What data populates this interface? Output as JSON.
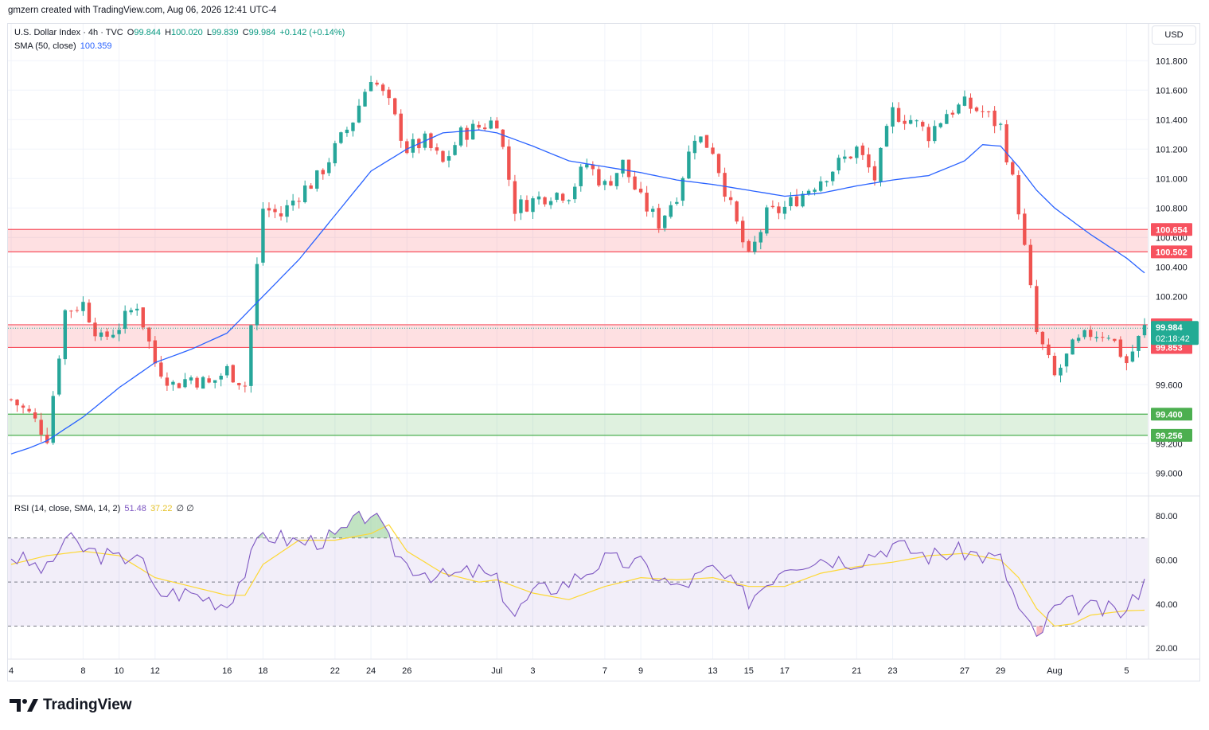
{
  "header": {
    "caption": "gmzern created with TradingView.com, Aug 06, 2026 12:41 UTC-4"
  },
  "legend": {
    "symbol": "U.S. Dollar Index · 4h · TVC",
    "o_label": "O",
    "o_value": "99.844",
    "h_label": "H",
    "h_value": "100.020",
    "l_label": "L",
    "l_value": "99.839",
    "c_label": "C",
    "c_value": "99.984",
    "change": "+0.142 (+0.14%)",
    "sma_label": "SMA (50, close)",
    "sma_value": "100.359",
    "rsi_label": "RSI (14, close, SMA, 14, 2)",
    "rsi_value": "51.48",
    "rsi_ma_value": "37.22",
    "rsi_extra": "∅ ∅"
  },
  "currency_button": "USD",
  "footer": {
    "brand": "TradingView"
  },
  "colors": {
    "up": "#26a69a",
    "down": "#ef5350",
    "sma": "#2962ff",
    "rsi": "#7e57c2",
    "rsi_ma": "#fdd835",
    "resistance_zone": "#f7525f",
    "support_zone": "#4caf50",
    "price_tag": "#22ab94"
  },
  "chart_data": {
    "type": "candlestick",
    "timeframe": "4h",
    "x_tick_labels": [
      "4",
      "8",
      "10",
      "12",
      "16",
      "18",
      "22",
      "24",
      "26",
      "Jul",
      "3",
      "7",
      "9",
      "13",
      "15",
      "17",
      "21",
      "23",
      "27",
      "29",
      "Aug",
      "5"
    ],
    "y_tick_labels": [
      "101.800",
      "101.600",
      "101.400",
      "101.200",
      "101.000",
      "100.800",
      "100.600",
      "100.400",
      "100.200",
      "99.600",
      "99.200",
      "99.000"
    ],
    "ylim": [
      98.85,
      102.05
    ],
    "path_anchors": [
      [
        "4",
        99.5
      ],
      [
        "5",
        99.4
      ],
      [
        "6",
        99.25
      ],
      [
        "7",
        100.1
      ],
      [
        "8",
        100.15
      ],
      [
        "9",
        99.9
      ],
      [
        "10",
        100.0
      ],
      [
        "11",
        100.15
      ],
      [
        "12",
        99.75
      ],
      [
        "13",
        99.6
      ],
      [
        "14",
        99.65
      ],
      [
        "15",
        99.6
      ],
      [
        "16",
        99.7
      ],
      [
        "17",
        99.6
      ],
      [
        "18",
        100.8
      ],
      [
        "19",
        100.75
      ],
      [
        "20",
        100.9
      ],
      [
        "21",
        101.0
      ],
      [
        "22",
        101.2
      ],
      [
        "23",
        101.4
      ],
      [
        "24",
        101.7
      ],
      [
        "25",
        101.5
      ],
      [
        "26",
        101.2
      ],
      [
        "27",
        101.25
      ],
      [
        "28",
        101.1
      ],
      [
        "29",
        101.3
      ],
      [
        "30",
        101.35
      ],
      [
        "Jul",
        101.4
      ],
      [
        "2",
        100.8
      ],
      [
        "3",
        100.85
      ],
      [
        "4",
        100.9
      ],
      [
        "5",
        100.9
      ],
      [
        "6",
        101.1
      ],
      [
        "7",
        100.95
      ],
      [
        "8",
        101.1
      ],
      [
        "9",
        100.85
      ],
      [
        "10",
        100.7
      ],
      [
        "11",
        100.9
      ],
      [
        "12",
        101.3
      ],
      [
        "13",
        101.2
      ],
      [
        "14",
        100.8
      ],
      [
        "15",
        100.45
      ],
      [
        "16",
        100.75
      ],
      [
        "17",
        100.8
      ],
      [
        "18",
        100.9
      ],
      [
        "19",
        101.0
      ],
      [
        "20",
        101.1
      ],
      [
        "21",
        101.2
      ],
      [
        "22",
        101.0
      ],
      [
        "23",
        101.45
      ],
      [
        "24",
        101.4
      ],
      [
        "25",
        101.3
      ],
      [
        "26",
        101.45
      ],
      [
        "27",
        101.5
      ],
      [
        "28",
        101.45
      ],
      [
        "29",
        101.35
      ],
      [
        "30",
        100.8
      ],
      [
        "31",
        99.95
      ],
      [
        "Aug",
        99.65
      ],
      [
        "2",
        99.85
      ],
      [
        "3",
        99.95
      ],
      [
        "4",
        99.95
      ],
      [
        "5",
        99.75
      ],
      [
        "6",
        99.984
      ]
    ],
    "sma50_anchors": [
      [
        "4",
        99.13
      ],
      [
        "5",
        99.17
      ],
      [
        "6",
        99.22
      ],
      [
        "8",
        99.38
      ],
      [
        "10",
        99.58
      ],
      [
        "12",
        99.75
      ],
      [
        "14",
        99.84
      ],
      [
        "16",
        99.95
      ],
      [
        "18",
        100.2
      ],
      [
        "20",
        100.45
      ],
      [
        "22",
        100.75
      ],
      [
        "24",
        101.05
      ],
      [
        "26",
        101.2
      ],
      [
        "28",
        101.31
      ],
      [
        "30",
        101.33
      ],
      [
        "Jul",
        101.31
      ],
      [
        "3",
        101.22
      ],
      [
        "5",
        101.12
      ],
      [
        "7",
        101.08
      ],
      [
        "9",
        101.04
      ],
      [
        "11",
        100.99
      ],
      [
        "13",
        100.96
      ],
      [
        "15",
        100.92
      ],
      [
        "17",
        100.88
      ],
      [
        "19",
        100.9
      ],
      [
        "21",
        100.95
      ],
      [
        "23",
        100.99
      ],
      [
        "25",
        101.02
      ],
      [
        "27",
        101.12
      ],
      [
        "28",
        101.23
      ],
      [
        "29",
        101.22
      ],
      [
        "30",
        101.08
      ],
      [
        "31",
        100.92
      ],
      [
        "Aug",
        100.8
      ],
      [
        "3",
        100.62
      ],
      [
        "5",
        100.46
      ],
      [
        "6",
        100.359
      ]
    ],
    "zones": [
      {
        "label_top": "100.654",
        "label_bottom": "100.502",
        "kind": "resistance"
      },
      {
        "label_top": "100.007",
        "label_bottom": "99.853",
        "kind": "resistance"
      },
      {
        "label_top": "99.400",
        "label_bottom": "99.256",
        "kind": "support"
      }
    ],
    "last_price": {
      "price": "99.984",
      "countdown": "02:18:42"
    },
    "rsi": {
      "y_tick_labels": [
        "80.00",
        "60.00",
        "40.00",
        "20.00"
      ],
      "ylim": [
        15,
        88
      ],
      "bands": [
        30,
        50,
        70
      ],
      "anchors": [
        [
          "4",
          62
        ],
        [
          "6",
          55
        ],
        [
          "7",
          70
        ],
        [
          "8",
          65
        ],
        [
          "10",
          60
        ],
        [
          "11",
          64
        ],
        [
          "12",
          45
        ],
        [
          "14",
          45
        ],
        [
          "16",
          40
        ],
        [
          "17",
          55
        ],
        [
          "18",
          72
        ],
        [
          "20",
          68
        ],
        [
          "22",
          70
        ],
        [
          "24",
          82
        ],
        [
          "25",
          68
        ],
        [
          "26",
          58
        ],
        [
          "28",
          52
        ],
        [
          "30",
          55
        ],
        [
          "Jul",
          50
        ],
        [
          "2",
          35
        ],
        [
          "3",
          45
        ],
        [
          "5",
          50
        ],
        [
          "7",
          60
        ],
        [
          "9",
          58
        ],
        [
          "11",
          47
        ],
        [
          "13",
          56
        ],
        [
          "15",
          42
        ],
        [
          "17",
          58
        ],
        [
          "19",
          61
        ],
        [
          "21",
          60
        ],
        [
          "23",
          67
        ],
        [
          "25",
          62
        ],
        [
          "27",
          64
        ],
        [
          "29",
          60
        ],
        [
          "30",
          38
        ],
        [
          "31",
          24
        ],
        [
          "Aug",
          38
        ],
        [
          "2",
          40
        ],
        [
          "3",
          38
        ],
        [
          "5",
          36
        ],
        [
          "6",
          51.48
        ]
      ],
      "ma_anchors": [
        [
          "4",
          58
        ],
        [
          "6",
          62
        ],
        [
          "8",
          64
        ],
        [
          "10",
          62
        ],
        [
          "12",
          52
        ],
        [
          "14",
          48
        ],
        [
          "16",
          44
        ],
        [
          "17",
          44
        ],
        [
          "18",
          58
        ],
        [
          "20",
          69
        ],
        [
          "22",
          69
        ],
        [
          "24",
          72
        ],
        [
          "25",
          76
        ],
        [
          "26",
          64
        ],
        [
          "28",
          54
        ],
        [
          "30",
          50
        ],
        [
          "Jul",
          51
        ],
        [
          "3",
          45
        ],
        [
          "5",
          42
        ],
        [
          "7",
          48
        ],
        [
          "9",
          52
        ],
        [
          "11",
          51
        ],
        [
          "13",
          52
        ],
        [
          "15",
          48
        ],
        [
          "17",
          48
        ],
        [
          "19",
          54
        ],
        [
          "21",
          57
        ],
        [
          "23",
          59
        ],
        [
          "25",
          62
        ],
        [
          "27",
          63
        ],
        [
          "29",
          60
        ],
        [
          "30",
          52
        ],
        [
          "31",
          38
        ],
        [
          "Aug",
          30
        ],
        [
          "2",
          31
        ],
        [
          "3",
          35
        ],
        [
          "5",
          37
        ],
        [
          "6",
          37.22
        ]
      ]
    }
  }
}
